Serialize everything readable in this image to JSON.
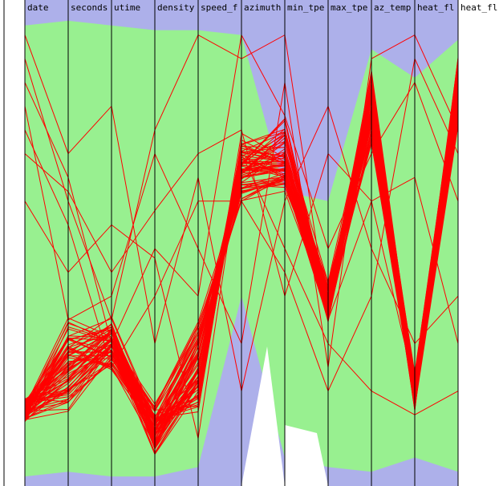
{
  "chart_data": {
    "type": "parallel-coordinates",
    "axes": [
      "date",
      "seconds",
      "utime",
      "density",
      "speed_f",
      "azimuth",
      "min_tpe",
      "max_tpe",
      "az_temp",
      "heat_fl",
      "heat_fl"
    ],
    "colors": {
      "background_band": "#adb0ea",
      "context_fill": "#98f090",
      "selected_lines": "#ff0000",
      "axis_lines": "#000000",
      "frame": "#ffffff"
    },
    "context_band_bounds": [
      [
        0.97,
        0.02
      ],
      [
        0.98,
        0.03
      ],
      [
        0.97,
        0.02
      ],
      [
        0.96,
        0.02
      ],
      [
        0.96,
        0.04
      ],
      [
        0.95,
        0.4
      ],
      [
        0.62,
        0.06
      ],
      [
        0.6,
        0.04
      ],
      [
        0.92,
        0.03
      ],
      [
        0.86,
        0.06
      ],
      [
        0.94,
        0.03
      ]
    ],
    "selected_line_clusters": [
      [
        0.16,
        0.18,
        0.28,
        0.14,
        0.18,
        0.72,
        0.7,
        0.36,
        0.82,
        0.19,
        0.83
      ],
      [
        0.16,
        0.22,
        0.3,
        0.09,
        0.22,
        0.7,
        0.75,
        0.38,
        0.85,
        0.2,
        0.85
      ],
      [
        0.16,
        0.25,
        0.32,
        0.1,
        0.25,
        0.68,
        0.68,
        0.4,
        0.8,
        0.2,
        0.8
      ],
      [
        0.16,
        0.28,
        0.26,
        0.11,
        0.28,
        0.66,
        0.72,
        0.42,
        0.78,
        0.18,
        0.88
      ],
      [
        0.16,
        0.3,
        0.34,
        0.12,
        0.3,
        0.64,
        0.66,
        0.37,
        0.76,
        0.21,
        0.82
      ],
      [
        0.16,
        0.33,
        0.29,
        0.15,
        0.33,
        0.62,
        0.64,
        0.39,
        0.74,
        0.19,
        0.78
      ],
      [
        0.16,
        0.2,
        0.31,
        0.13,
        0.2,
        0.69,
        0.67,
        0.41,
        0.83,
        0.22,
        0.86
      ]
    ],
    "outlier_lines": [
      [
        0.9,
        0.6,
        0.35,
        0.75,
        0.95,
        0.9,
        0.95,
        0.35,
        0.6,
        0.21,
        0.9
      ],
      [
        0.8,
        0.35,
        0.4,
        0.7,
        0.5,
        0.3,
        0.85,
        0.25,
        0.9,
        0.95,
        0.75
      ],
      [
        0.95,
        0.7,
        0.8,
        0.3,
        0.65,
        0.2,
        0.6,
        0.8,
        0.5,
        0.3,
        0.4
      ],
      [
        0.7,
        0.62,
        0.45,
        0.58,
        0.7,
        0.75,
        0.4,
        0.7,
        0.6,
        0.65,
        0.3
      ],
      [
        0.85,
        0.65,
        0.3,
        0.5,
        0.4,
        0.95,
        0.78,
        0.5,
        0.7,
        0.85,
        0.6
      ],
      [
        0.6,
        0.45,
        0.55,
        0.48,
        0.1,
        0.7,
        0.5,
        0.3,
        0.2,
        0.15,
        0.2
      ],
      [
        0.75,
        0.55,
        0.25,
        0.4,
        0.6,
        0.6,
        0.45,
        0.2,
        0.4,
        0.9,
        0.7
      ]
    ]
  }
}
